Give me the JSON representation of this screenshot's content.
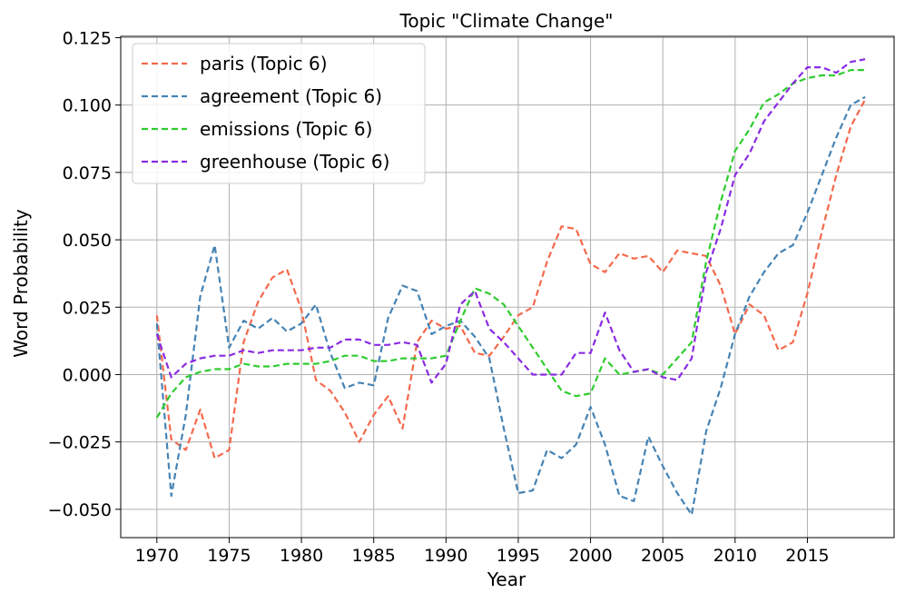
{
  "chart_data": {
    "type": "line",
    "title": "Topic \"Climate Change\"",
    "xlabel": "Year",
    "ylabel": "Word Probability",
    "xlim": [
      1967.5,
      2021.0
    ],
    "ylim": [
      -0.0605,
      0.1255
    ],
    "xticks": [
      1970,
      1975,
      1980,
      1985,
      1990,
      1995,
      2000,
      2005,
      2010,
      2015
    ],
    "xtick_labels": [
      "1970",
      "1975",
      "1980",
      "1985",
      "1990",
      "1995",
      "2000",
      "2005",
      "2010",
      "2015"
    ],
    "yticks": [
      -0.05,
      -0.025,
      0.0,
      0.025,
      0.05,
      0.075,
      0.1,
      0.125
    ],
    "ytick_labels": [
      "−0.050",
      "−0.025",
      "0.000",
      "0.025",
      "0.050",
      "0.075",
      "0.100",
      "0.125"
    ],
    "grid": true,
    "legend_position": "top-left",
    "x": [
      1970,
      1971,
      1972,
      1973,
      1974,
      1975,
      1976,
      1977,
      1978,
      1979,
      1980,
      1981,
      1982,
      1983,
      1984,
      1985,
      1986,
      1987,
      1988,
      1989,
      1990,
      1991,
      1992,
      1993,
      1994,
      1995,
      1996,
      1997,
      1998,
      1999,
      2000,
      2001,
      2002,
      2003,
      2004,
      2005,
      2006,
      2007,
      2008,
      2009,
      2010,
      2011,
      2012,
      2013,
      2014,
      2015,
      2016,
      2017,
      2018,
      2019
    ],
    "series": [
      {
        "name": "paris (Topic 6)",
        "color": "#f4694c",
        "values": [
          0.022,
          -0.024,
          -0.028,
          -0.013,
          -0.031,
          -0.028,
          0.012,
          0.027,
          0.036,
          0.039,
          0.024,
          -0.002,
          -0.006,
          -0.014,
          -0.025,
          -0.015,
          -0.008,
          -0.02,
          0.012,
          0.02,
          0.017,
          0.018,
          0.008,
          0.007,
          0.014,
          0.022,
          0.025,
          0.042,
          0.055,
          0.054,
          0.041,
          0.038,
          0.045,
          0.043,
          0.044,
          0.038,
          0.046,
          0.045,
          0.044,
          0.033,
          0.015,
          0.026,
          0.022,
          0.009,
          0.012,
          0.03,
          0.053,
          0.074,
          0.092,
          0.102
        ]
      },
      {
        "name": "agreement (Topic 6)",
        "color": "#4583b4",
        "values": [
          0.019,
          -0.045,
          -0.015,
          0.029,
          0.048,
          0.01,
          0.02,
          0.017,
          0.021,
          0.016,
          0.019,
          0.026,
          0.008,
          -0.005,
          -0.003,
          -0.004,
          0.021,
          0.033,
          0.031,
          0.015,
          0.018,
          0.02,
          0.014,
          0.006,
          -0.02,
          -0.044,
          -0.043,
          -0.028,
          -0.031,
          -0.026,
          -0.012,
          -0.026,
          -0.045,
          -0.047,
          -0.023,
          -0.034,
          -0.044,
          -0.052,
          -0.021,
          -0.005,
          0.015,
          0.029,
          0.038,
          0.045,
          0.048,
          0.06,
          0.074,
          0.088,
          0.1,
          0.103
        ]
      },
      {
        "name": "emissions (Topic 6)",
        "color": "#2fcc2f",
        "values": [
          -0.016,
          -0.007,
          -0.001,
          0.001,
          0.002,
          0.002,
          0.004,
          0.003,
          0.003,
          0.004,
          0.004,
          0.004,
          0.005,
          0.007,
          0.007,
          0.005,
          0.005,
          0.006,
          0.006,
          0.006,
          0.007,
          0.02,
          0.032,
          0.03,
          0.026,
          0.018,
          0.01,
          0.002,
          -0.006,
          -0.008,
          -0.007,
          0.006,
          0.0,
          0.001,
          0.002,
          0.0,
          0.006,
          0.012,
          0.042,
          0.064,
          0.083,
          0.091,
          0.101,
          0.104,
          0.108,
          0.11,
          0.111,
          0.111,
          0.113,
          0.113
        ]
      },
      {
        "name": "greenhouse (Topic 6)",
        "color": "#8a2be2",
        "values": [
          0.015,
          -0.001,
          0.004,
          0.006,
          0.007,
          0.007,
          0.009,
          0.008,
          0.009,
          0.009,
          0.009,
          0.01,
          0.01,
          0.013,
          0.013,
          0.011,
          0.011,
          0.012,
          0.011,
          -0.003,
          0.004,
          0.026,
          0.031,
          0.017,
          0.012,
          0.006,
          0.0,
          0.0,
          0.0,
          0.008,
          0.008,
          0.023,
          0.009,
          0.001,
          0.002,
          -0.001,
          -0.002,
          0.006,
          0.038,
          0.054,
          0.074,
          0.082,
          0.094,
          0.101,
          0.108,
          0.114,
          0.114,
          0.112,
          0.116,
          0.117
        ]
      }
    ]
  }
}
